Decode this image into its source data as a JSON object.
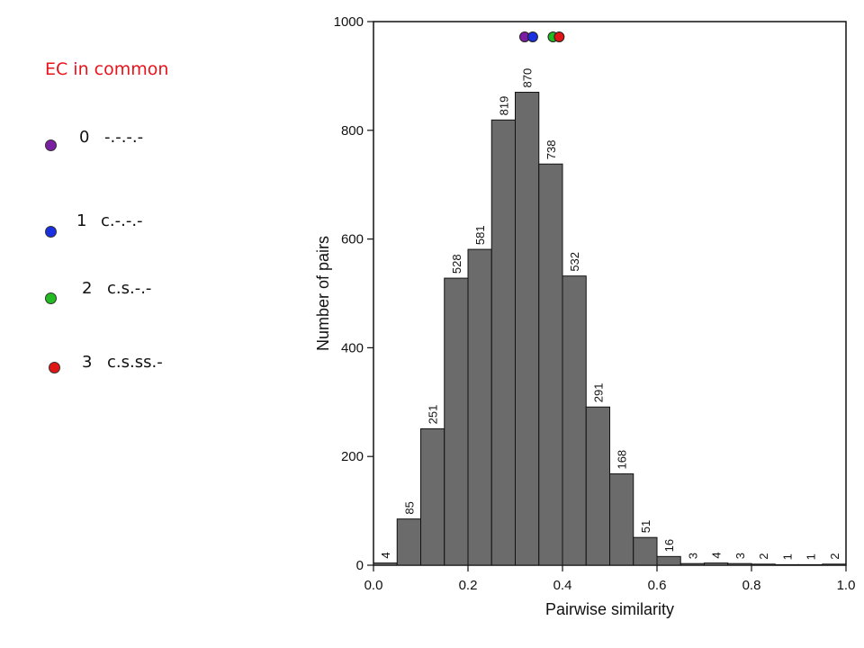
{
  "legend": {
    "title": "EC in common",
    "items": [
      {
        "num": "0",
        "label": "-.-.-.-",
        "color": "#7b1fa2"
      },
      {
        "num": "1",
        "label": "c.-.-.-",
        "color": "#1a2fe0"
      },
      {
        "num": "2",
        "label": "c.s.-.-",
        "color": "#22bb22"
      },
      {
        "num": "3",
        "label": "c.s.ss.-",
        "color": "#e01515"
      }
    ]
  },
  "chart_data": {
    "type": "bar",
    "xlabel": "Pairwise similarity",
    "ylabel": "Number of pairs",
    "xlim": [
      0.0,
      1.0
    ],
    "ylim": [
      0,
      1000
    ],
    "xticks": [
      "0.0",
      "0.2",
      "0.4",
      "0.6",
      "0.8",
      "1.0"
    ],
    "yticks": [
      "0",
      "200",
      "400",
      "600",
      "800",
      "1000"
    ],
    "bin_width": 0.05,
    "bins": [
      0.0,
      0.05,
      0.1,
      0.15,
      0.2,
      0.25,
      0.3,
      0.35,
      0.4,
      0.45,
      0.5,
      0.55,
      0.6,
      0.65,
      0.7,
      0.75,
      0.8,
      0.85,
      0.9,
      0.95
    ],
    "values": [
      4,
      85,
      251,
      528,
      581,
      819,
      870,
      738,
      532,
      291,
      168,
      51,
      16,
      3,
      4,
      3,
      2,
      1,
      1,
      2
    ],
    "bar_color": "#6b6b6b",
    "markers": [
      {
        "name": "0",
        "x": 0.32,
        "color": "#7b1fa2"
      },
      {
        "name": "1",
        "x": 0.337,
        "color": "#1a2fe0"
      },
      {
        "name": "2",
        "x": 0.38,
        "color": "#22bb22"
      },
      {
        "name": "3",
        "x": 0.393,
        "color": "#e01515"
      }
    ]
  }
}
